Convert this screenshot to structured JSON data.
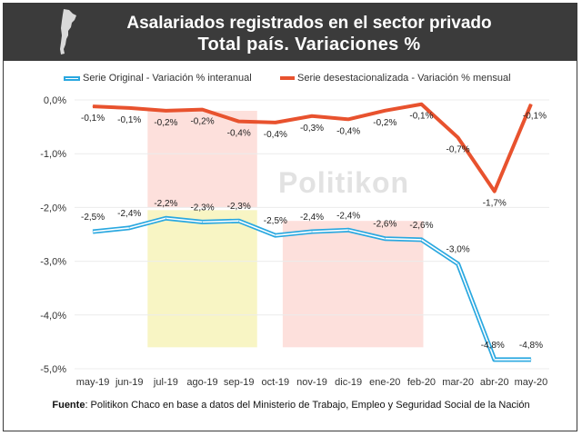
{
  "header": {
    "title": "Asalariados registrados en el sector privado",
    "subtitle": "Total país. Variaciones %"
  },
  "watermark": "Politikon",
  "footer": {
    "source_label": "Fuente",
    "source_text": ": Politikon Chaco en base a datos del Ministerio de Trabajo, Empleo y Seguridad Social de la Nación"
  },
  "colors": {
    "header_bg": "#3b3b3b",
    "series_original": "#2aa8e0",
    "series_desest": "#e8522e",
    "band_red": "#fde0dc",
    "band_yellow": "#f8f5c4"
  },
  "chart_data": {
    "type": "line",
    "categories": [
      "may-19",
      "jun-19",
      "jul-19",
      "ago-19",
      "sep-19",
      "oct-19",
      "nov-19",
      "dic-19",
      "ene-20",
      "feb-20",
      "mar-20",
      "abr-20",
      "may-20"
    ],
    "y_ticks": [
      "0,0%",
      "-1,0%",
      "-2,0%",
      "-3,0%",
      "-4,0%",
      "-5,0%"
    ],
    "ylim": [
      -5,
      0
    ],
    "legend_position": "top",
    "series": [
      {
        "name": "Serie Original - Variación % interanual",
        "color": "#2aa8e0",
        "values": [
          -2.45,
          -2.38,
          -2.2,
          -2.27,
          -2.25,
          -2.52,
          -2.45,
          -2.42,
          -2.58,
          -2.6,
          -3.05,
          -4.83,
          -4.83
        ],
        "labels": [
          "-2,5%",
          "-2,4%",
          "-2,2%",
          "-2,3%",
          "-2,3%",
          "-2,5%",
          "-2,4%",
          "-2,4%",
          "-2,6%",
          "-2,6%",
          "-3,0%",
          "-4,8%",
          "-4,8%"
        ]
      },
      {
        "name": "Serie desestacionalizada - Variación % mensual",
        "color": "#e8522e",
        "values": [
          -0.12,
          -0.15,
          -0.2,
          -0.18,
          -0.4,
          -0.42,
          -0.3,
          -0.36,
          -0.2,
          -0.08,
          -0.7,
          -1.7,
          -0.08
        ],
        "labels": [
          "-0,1%",
          "-0,1%",
          "-0,2%",
          "-0,2%",
          "-0,4%",
          "-0,4%",
          "-0,3%",
          "-0,4%",
          "-0,2%",
          "-0,1%",
          "-0,7%",
          "-1,7%",
          "-0,1%"
        ]
      }
    ]
  }
}
